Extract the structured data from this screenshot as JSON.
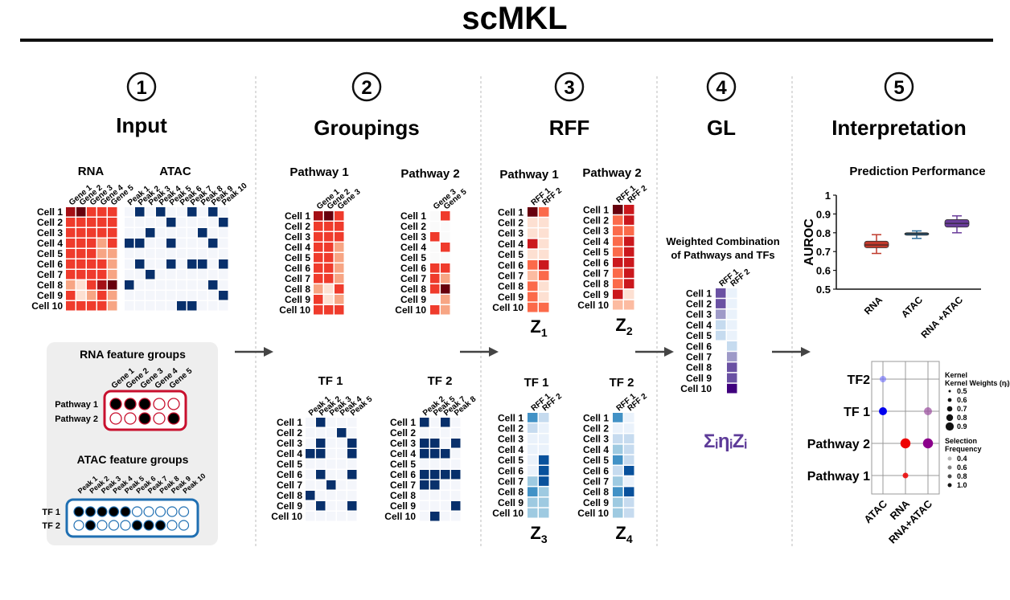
{
  "title": "scMKL",
  "steps": [
    {
      "num": "1",
      "label": "Input"
    },
    {
      "num": "2",
      "label": "Groupings"
    },
    {
      "num": "3",
      "label": "RFF"
    },
    {
      "num": "4",
      "label": "GL"
    },
    {
      "num": "5",
      "label": "Interpretation"
    }
  ],
  "colors": {
    "rna": [
      "#ffffff",
      "#fde0d2",
      "#f7a584",
      "#ef3b2c",
      "#a50f15",
      "#67000d"
    ],
    "atac": "#08306b",
    "rff_blue": [
      "#ffffff",
      "#eaf2fb",
      "#c6dbef",
      "#9ecae1",
      "#4292c6",
      "#08519c"
    ],
    "rff_red": [
      "#ffffff",
      "#fde0d2",
      "#fcbba1",
      "#fb6a4a",
      "#cb181d",
      "#67000d"
    ],
    "gl": [
      "#ffffff",
      "#eaf2fb",
      "#c6dbef",
      "#9e9ac8",
      "#6a51a3",
      "#3f007d"
    ],
    "rna_group": "#c8102e",
    "atac_group": "#1f6fb2",
    "panel_bg": "#eeeeee",
    "arrow": "#444444"
  },
  "cells": [
    "Cell 1",
    "Cell 2",
    "Cell 3",
    "Cell 4",
    "Cell 5",
    "Cell 6",
    "Cell 7",
    "Cell 8",
    "Cell 9",
    "Cell 10"
  ],
  "input": {
    "rna_title": "RNA",
    "atac_title": "ATAC",
    "genes": [
      "Gene 1",
      "Gene 2",
      "Gene 3",
      "Gene 4",
      "Gene 5"
    ],
    "peaks": [
      "Peak 1",
      "Peak 2",
      "Peak 3",
      "Peak 4",
      "Peak 5",
      "Peak 6",
      "Peak 7",
      "Peak 8",
      "Peak 9",
      "Peak 10"
    ],
    "rna_matrix": [
      [
        4,
        5,
        3,
        3,
        3
      ],
      [
        3,
        3,
        3,
        3,
        3
      ],
      [
        3,
        3,
        3,
        3,
        3
      ],
      [
        3,
        3,
        3,
        2,
        3
      ],
      [
        3,
        3,
        3,
        2,
        2
      ],
      [
        3,
        3,
        3,
        3,
        2
      ],
      [
        3,
        3,
        3,
        3,
        2
      ],
      [
        2,
        1,
        3,
        4,
        5
      ],
      [
        3,
        1,
        2,
        3,
        2
      ],
      [
        3,
        3,
        3,
        3,
        2
      ]
    ],
    "atac_matrix": [
      [
        0,
        1,
        0,
        1,
        0,
        0,
        1,
        0,
        1,
        0
      ],
      [
        0,
        0,
        0,
        0,
        1,
        0,
        0,
        0,
        0,
        1
      ],
      [
        0,
        0,
        1,
        0,
        0,
        0,
        0,
        1,
        0,
        0
      ],
      [
        1,
        1,
        0,
        0,
        1,
        0,
        0,
        0,
        1,
        0
      ],
      [
        0,
        0,
        0,
        0,
        0,
        0,
        0,
        0,
        0,
        0
      ],
      [
        0,
        1,
        0,
        0,
        1,
        0,
        1,
        1,
        0,
        1
      ],
      [
        0,
        0,
        1,
        0,
        0,
        0,
        0,
        0,
        0,
        0
      ],
      [
        1,
        0,
        0,
        0,
        0,
        0,
        0,
        0,
        1,
        0
      ],
      [
        0,
        0,
        0,
        0,
        0,
        0,
        0,
        0,
        0,
        1
      ],
      [
        0,
        0,
        0,
        0,
        0,
        1,
        1,
        0,
        0,
        0
      ]
    ],
    "rna_groups": {
      "title": "RNA feature groups",
      "genes": [
        "Gene 1",
        "Gene 2",
        "Gene 3",
        "Gene 4",
        "Gene 5"
      ],
      "rows": [
        {
          "name": "Pathway 1",
          "dots": [
            1,
            1,
            1,
            0,
            0
          ]
        },
        {
          "name": "Pathway 2",
          "dots": [
            0,
            0,
            1,
            0,
            1
          ]
        }
      ]
    },
    "atac_groups": {
      "title": "ATAC feature groups",
      "peaks": [
        "Peak 1",
        "Peak 2",
        "Peak 3",
        "Peak 4",
        "Peak 5",
        "Peak 6",
        "Peak 7",
        "Peak 8",
        "Peak 9",
        "Peak 10"
      ],
      "rows": [
        {
          "name": "TF 1",
          "dots": [
            1,
            1,
            1,
            1,
            1,
            0,
            0,
            0,
            0,
            0
          ]
        },
        {
          "name": "TF 2",
          "dots": [
            0,
            1,
            0,
            0,
            0,
            1,
            1,
            1,
            0,
            0
          ]
        }
      ]
    }
  },
  "groupings": {
    "pathway1": {
      "title": "Pathway 1",
      "cols": [
        "Gene 1",
        "Gene 2",
        "Gene 3"
      ],
      "matrix": [
        [
          4,
          5,
          3
        ],
        [
          3,
          3,
          3
        ],
        [
          3,
          3,
          3
        ],
        [
          3,
          3,
          2
        ],
        [
          3,
          3,
          2
        ],
        [
          3,
          3,
          2
        ],
        [
          3,
          3,
          2
        ],
        [
          2,
          1,
          3
        ],
        [
          3,
          1,
          2
        ],
        [
          3,
          3,
          3
        ]
      ]
    },
    "pathway2": {
      "title": "Pathway 2",
      "cols": [
        "Gene 3",
        "Gene 5"
      ],
      "matrix": [
        [
          0,
          3
        ],
        [
          0,
          0
        ],
        [
          3,
          0
        ],
        [
          0,
          3
        ],
        [
          0,
          0
        ],
        [
          3,
          3
        ],
        [
          3,
          2
        ],
        [
          3,
          5
        ],
        [
          0,
          2
        ],
        [
          3,
          2
        ]
      ]
    },
    "tf1": {
      "title": "TF 1",
      "cols": [
        "Peak 1",
        "Peak 2",
        "Peak 3",
        "Peak 4",
        "Peak 5"
      ],
      "matrix": [
        [
          0,
          1,
          0,
          0,
          0
        ],
        [
          0,
          0,
          0,
          1,
          0
        ],
        [
          0,
          1,
          0,
          0,
          1
        ],
        [
          1,
          1,
          0,
          0,
          1
        ],
        [
          0,
          0,
          0,
          0,
          0
        ],
        [
          0,
          1,
          0,
          0,
          1
        ],
        [
          0,
          0,
          1,
          0,
          0
        ],
        [
          1,
          0,
          0,
          0,
          0
        ],
        [
          0,
          1,
          0,
          0,
          1
        ],
        [
          0,
          0,
          0,
          0,
          0
        ]
      ]
    },
    "tf2": {
      "title": "TF 2",
      "cols": [
        "Peak 2",
        "Peak 5",
        "Peak 7",
        "Peak 8"
      ],
      "matrix": [
        [
          1,
          0,
          1,
          0
        ],
        [
          0,
          0,
          0,
          0
        ],
        [
          1,
          1,
          0,
          1
        ],
        [
          1,
          1,
          1,
          0
        ],
        [
          0,
          0,
          0,
          0
        ],
        [
          1,
          1,
          1,
          1
        ],
        [
          1,
          1,
          0,
          0
        ],
        [
          0,
          0,
          0,
          0
        ],
        [
          0,
          0,
          0,
          1
        ],
        [
          0,
          1,
          0,
          0
        ]
      ]
    }
  },
  "rff": {
    "cols": [
      "RFF 1",
      "RFF 2"
    ],
    "pathway1": {
      "title": "Pathway 1",
      "z": "Z",
      "sub": "1",
      "matrix": [
        [
          5,
          3
        ],
        [
          1,
          1
        ],
        [
          1,
          1
        ],
        [
          4,
          1
        ],
        [
          1,
          1
        ],
        [
          3,
          4
        ],
        [
          2,
          3
        ],
        [
          3,
          1
        ],
        [
          3,
          1
        ],
        [
          3,
          3
        ]
      ]
    },
    "pathway2": {
      "title": "Pathway 2",
      "z": "Z",
      "sub": "2",
      "matrix": [
        [
          5,
          4
        ],
        [
          3,
          4
        ],
        [
          3,
          3
        ],
        [
          3,
          4
        ],
        [
          3,
          4
        ],
        [
          4,
          4
        ],
        [
          3,
          4
        ],
        [
          3,
          4
        ],
        [
          4,
          1
        ],
        [
          2,
          2
        ]
      ]
    },
    "tf1": {
      "title": "TF 1",
      "z": "Z",
      "sub": "3",
      "matrix": [
        [
          4,
          2
        ],
        [
          2,
          1
        ],
        [
          1,
          1
        ],
        [
          1,
          1
        ],
        [
          1,
          5
        ],
        [
          1,
          5
        ],
        [
          3,
          5
        ],
        [
          4,
          3
        ],
        [
          3,
          3
        ],
        [
          3,
          3
        ]
      ]
    },
    "tf2": {
      "title": "TF 2",
      "z": "Z",
      "sub": "4",
      "matrix": [
        [
          4,
          1
        ],
        [
          1,
          1
        ],
        [
          2,
          2
        ],
        [
          3,
          2
        ],
        [
          4,
          2
        ],
        [
          2,
          5
        ],
        [
          3,
          1
        ],
        [
          4,
          5
        ],
        [
          3,
          2
        ],
        [
          3,
          2
        ]
      ]
    }
  },
  "gl": {
    "title_line1": "Weighted Combination",
    "title_line2": "of Pathways and TFs",
    "cols": [
      "RFF 1",
      "RFF 2"
    ],
    "matrix": [
      [
        4,
        1
      ],
      [
        4,
        1
      ],
      [
        3,
        1
      ],
      [
        2,
        1
      ],
      [
        2,
        1
      ],
      [
        0,
        2
      ],
      [
        0,
        3
      ],
      [
        0,
        4
      ],
      [
        0,
        4
      ],
      [
        0,
        5
      ]
    ],
    "formula": "ΣᵢηᵢZᵢ"
  },
  "performance": {
    "title": "Prediction Performance",
    "ylabel": "AUROC",
    "yticks": [
      "1",
      "0.9",
      "0.8",
      "0.7",
      "0.6",
      "0.5"
    ],
    "chart_data": {
      "type": "box",
      "categories": [
        "RNA",
        "ATAC",
        "RNA +ATAC"
      ],
      "ylim": [
        0.5,
        1
      ],
      "boxes": [
        {
          "min": 0.69,
          "q1": 0.72,
          "median": 0.735,
          "q3": 0.755,
          "max": 0.79,
          "color": "#c0392b"
        },
        {
          "min": 0.77,
          "q1": 0.79,
          "median": 0.795,
          "q3": 0.8,
          "max": 0.81,
          "color": "#2c6e9b"
        },
        {
          "min": 0.8,
          "q1": 0.83,
          "median": 0.85,
          "q3": 0.87,
          "max": 0.89,
          "color": "#6a3d9a"
        }
      ]
    }
  },
  "dotplot": {
    "rows": [
      "TF2",
      "TF 1",
      "Pathway 2",
      "Pathway 1"
    ],
    "cols": [
      "ATAC",
      "RNA",
      "RNA+ATAC"
    ],
    "dots": [
      {
        "row": 0,
        "col": 0,
        "size": 0.4,
        "freq": 0.4,
        "color": "#6666ff"
      },
      {
        "row": 1,
        "col": 0,
        "size": 0.6,
        "freq": 1.0,
        "color": "#0000ee"
      },
      {
        "row": 1,
        "col": 2,
        "size": 0.6,
        "freq": 0.6,
        "color": "#9b4fa0"
      },
      {
        "row": 2,
        "col": 1,
        "size": 0.85,
        "freq": 1.0,
        "color": "#ee0000"
      },
      {
        "row": 2,
        "col": 2,
        "size": 0.85,
        "freq": 1.0,
        "color": "#8b008b"
      },
      {
        "row": 3,
        "col": 1,
        "size": 0.3,
        "freq": 0.8,
        "color": "#ee0000"
      }
    ],
    "legend_weights_title": "Kernel Weights (ηᵢ)",
    "legend_weights": [
      "0.5",
      "0.6",
      "0.7",
      "0.8",
      "0.9"
    ],
    "legend_freq_title": "Selection Frequency",
    "legend_freq": [
      "0.4",
      "0.6",
      "0.8",
      "1.0"
    ]
  }
}
